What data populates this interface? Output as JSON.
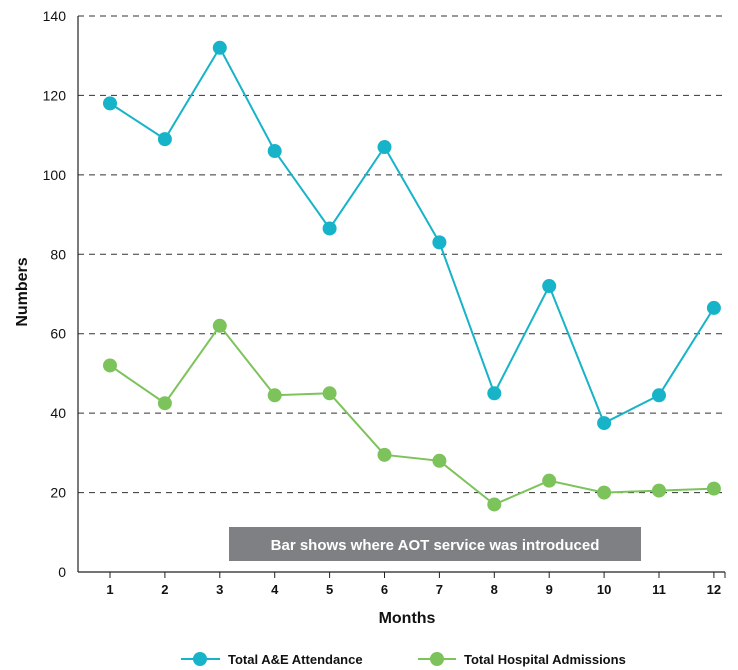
{
  "chart_data": {
    "type": "line",
    "title": "",
    "xlabel": "Months",
    "ylabel": "Numbers",
    "ylim": [
      0,
      140
    ],
    "yticks": [
      0,
      20,
      40,
      60,
      80,
      100,
      120,
      140
    ],
    "categories": [
      "1",
      "2",
      "3",
      "4",
      "5",
      "6",
      "7",
      "8",
      "9",
      "10",
      "11",
      "12"
    ],
    "grid": "horizontal dashed",
    "legend_position": "bottom",
    "series": [
      {
        "name": "Total A&E Attendance",
        "color": "#17b3c8",
        "values": [
          118,
          109,
          132,
          106,
          86.5,
          107,
          83,
          45,
          72,
          37.5,
          44.5,
          66.5
        ]
      },
      {
        "name": "Total Hospital Admissions",
        "color": "#7dc35b",
        "values": [
          52,
          42.5,
          62,
          44.5,
          45,
          29.5,
          28,
          17,
          23,
          20,
          20.5,
          21
        ]
      }
    ],
    "annotation": {
      "text": "Bar shows where AOT service was introduced",
      "background": "#7f8083"
    }
  }
}
